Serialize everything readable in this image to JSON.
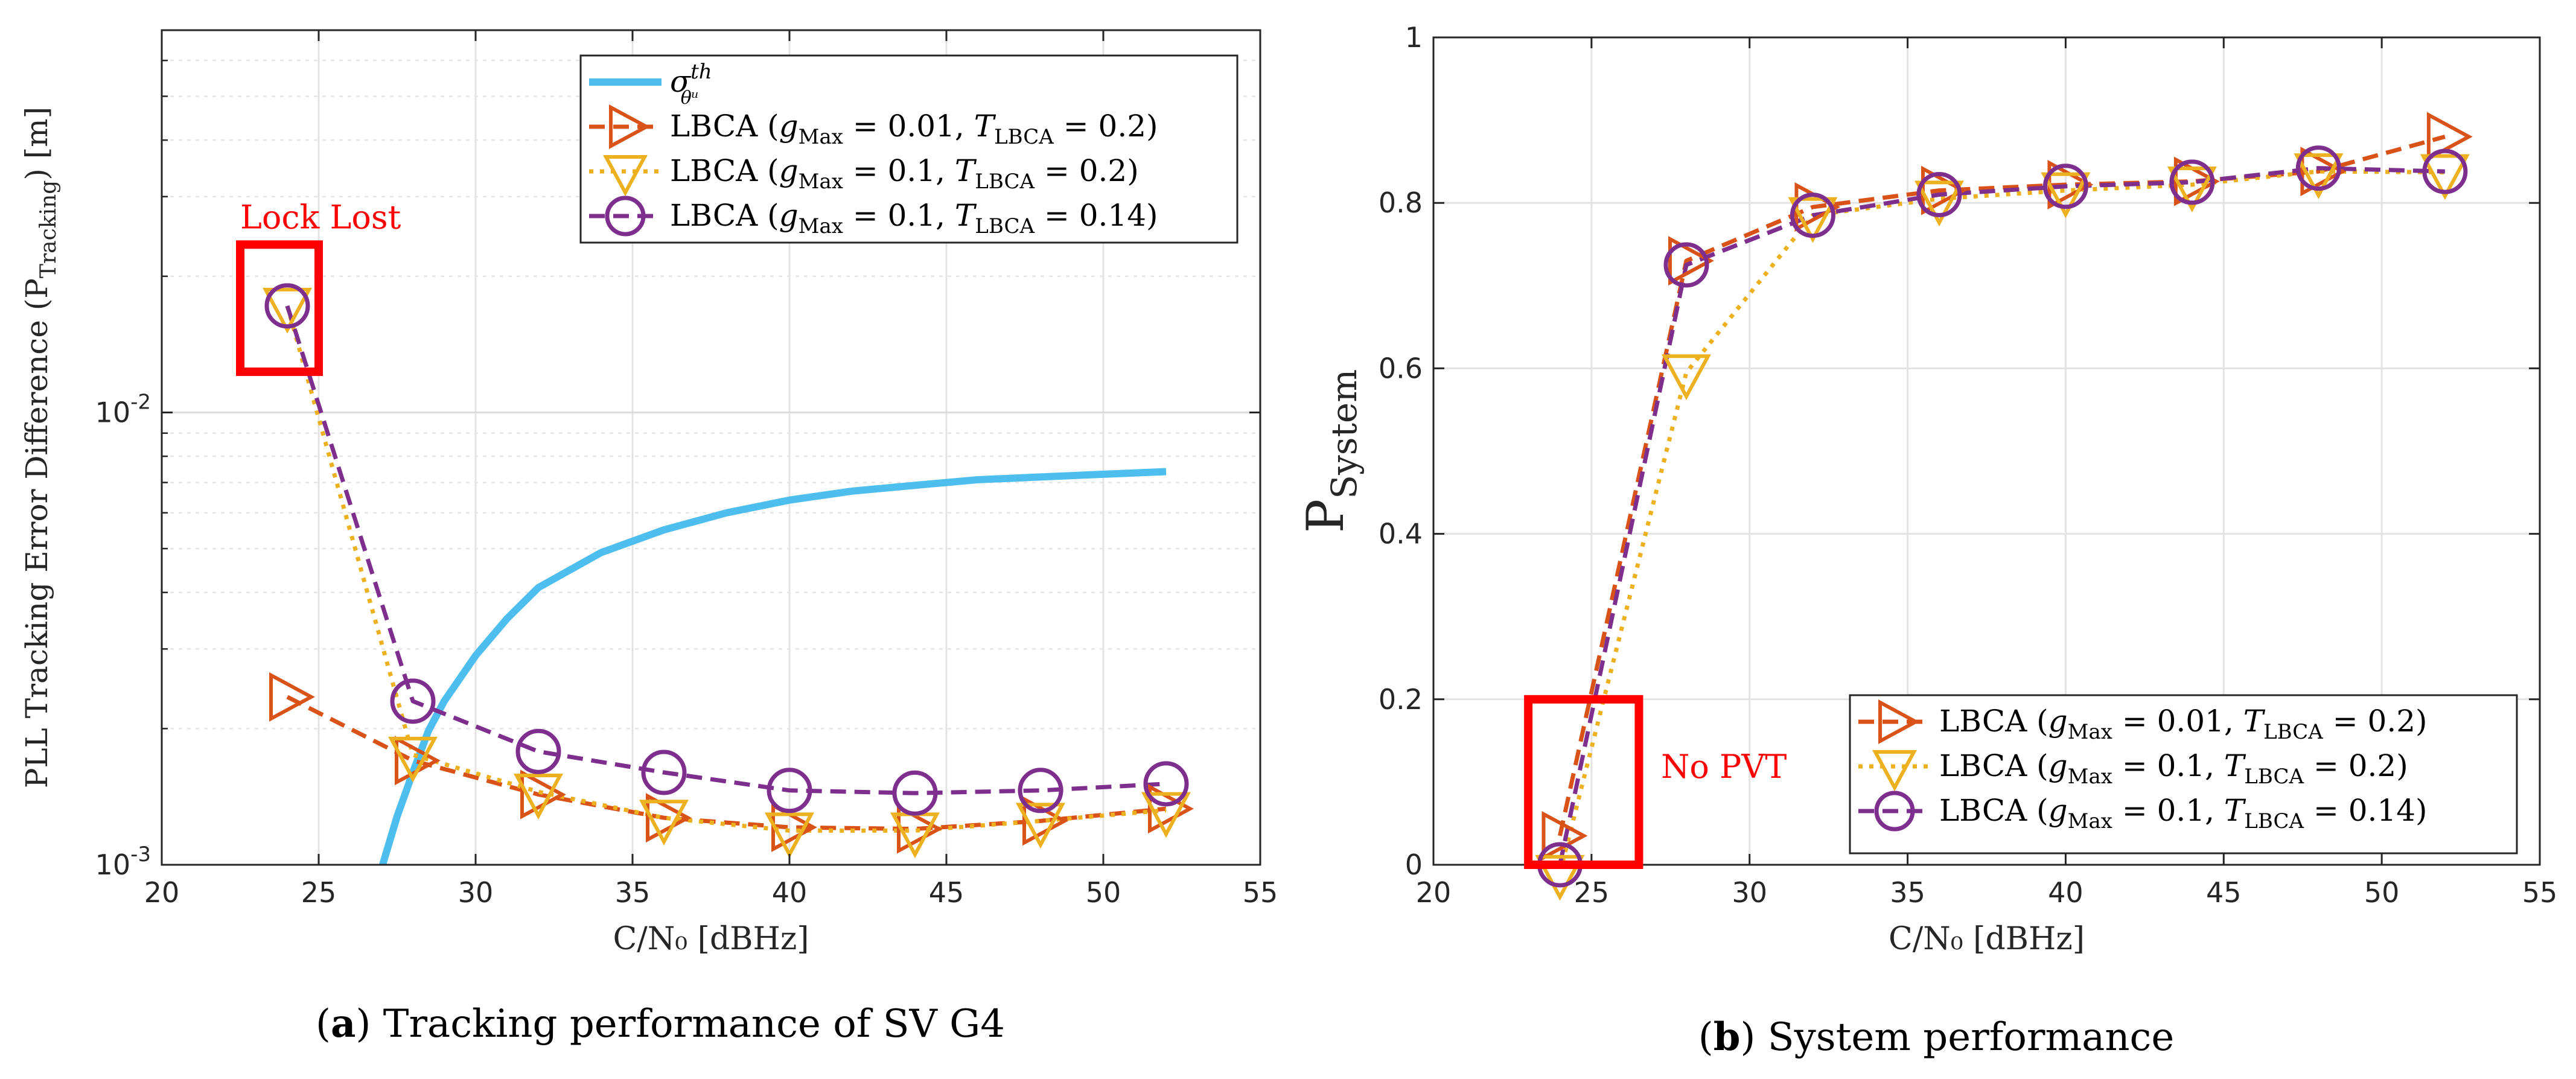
{
  "chart_data": [
    {
      "type": "line",
      "panel": "a",
      "caption_letter": "a",
      "caption_text": "Tracking performance of SV G4",
      "xlabel": "C/N₀ [dBHz]",
      "ylabel": "PLL Tracking Error Difference (P_Tracking) [m]",
      "ylabel_parts": {
        "prefix": "PLL Tracking Error Difference (P",
        "sub": "Tracking",
        "suffix": ") [m]"
      },
      "xlim": [
        20,
        55
      ],
      "ylim": [
        0.001,
        0.07
      ],
      "yscale": "log",
      "grid": true,
      "xticks": [
        20,
        25,
        30,
        35,
        40,
        45,
        50,
        55
      ],
      "yticks": [
        {
          "value": 0.001,
          "label": "10",
          "exp": "-3"
        },
        {
          "value": 0.01,
          "label": "10",
          "exp": "-2"
        }
      ],
      "legend_position": "top-right",
      "annotations": [
        {
          "text": "Lock Lost"
        }
      ],
      "series": [
        {
          "name": "σ_θᵘ^th",
          "legend_label": "σ",
          "legend_sup": "th",
          "legend_sub": "θᵘ",
          "color": "#4DBEEE",
          "style": "solid",
          "marker": "none",
          "x": [
            27,
            27.5,
            28,
            28.5,
            29,
            30,
            31,
            32,
            34,
            36,
            38,
            40,
            42,
            44,
            46,
            48,
            50,
            52
          ],
          "y": [
            0.00098,
            0.00128,
            0.0016,
            0.00198,
            0.0023,
            0.0029,
            0.0035,
            0.0041,
            0.0049,
            0.0055,
            0.006,
            0.0064,
            0.0067,
            0.0069,
            0.0071,
            0.0072,
            0.0073,
            0.0074
          ]
        },
        {
          "name": "LBCA (g_Max = 0.01, T_LBCA = 0.2)",
          "legend_g": "0.01",
          "legend_t": "0.2",
          "color": "#D95319",
          "style": "dashed",
          "marker": "triangle-right",
          "x": [
            24,
            28,
            32,
            36,
            40,
            44,
            48,
            52
          ],
          "y": [
            0.00235,
            0.0017,
            0.00143,
            0.00127,
            0.00121,
            0.0012,
            0.00125,
            0.00133
          ]
        },
        {
          "name": "LBCA (g_Max = 0.1, T_LBCA = 0.2)",
          "legend_g": "0.1",
          "legend_t": "0.2",
          "color": "#EDB120",
          "style": "dotted",
          "marker": "triangle-down",
          "x": [
            24,
            28,
            32,
            36,
            40,
            44,
            48,
            52
          ],
          "y": [
            0.0172,
            0.00175,
            0.00145,
            0.00127,
            0.00119,
            0.00119,
            0.00125,
            0.00132
          ]
        },
        {
          "name": "LBCA (g_Max = 0.1, T_LBCA = 0.14)",
          "legend_g": "0.1",
          "legend_t": "0.14",
          "color": "#7E2F8E",
          "style": "dashed",
          "marker": "circle",
          "x": [
            24,
            28,
            32,
            36,
            40,
            44,
            48,
            52
          ],
          "y": [
            0.0172,
            0.0023,
            0.00178,
            0.0016,
            0.00146,
            0.00144,
            0.00146,
            0.00151
          ]
        }
      ]
    },
    {
      "type": "line",
      "panel": "b",
      "caption_letter": "b",
      "caption_text": "System performance",
      "xlabel": "C/N₀ [dBHz]",
      "ylabel": "P_System",
      "ylabel_parts": {
        "prefix": "P",
        "sub": "System",
        "suffix": ""
      },
      "xlim": [
        20,
        55
      ],
      "ylim": [
        0,
        1
      ],
      "yscale": "linear",
      "grid": true,
      "xticks": [
        20,
        25,
        30,
        35,
        40,
        45,
        50,
        55
      ],
      "yticks": [
        {
          "value": 0,
          "label": "0"
        },
        {
          "value": 0.2,
          "label": "0.2"
        },
        {
          "value": 0.4,
          "label": "0.4"
        },
        {
          "value": 0.6,
          "label": "0.6"
        },
        {
          "value": 0.8,
          "label": "0.8"
        },
        {
          "value": 1,
          "label": "1"
        }
      ],
      "legend_position": "bottom-right",
      "annotations": [
        {
          "text": "No PVT"
        }
      ],
      "series": [
        {
          "name": "LBCA (g_Max = 0.01, T_LBCA = 0.2)",
          "legend_g": "0.01",
          "legend_t": "0.2",
          "color": "#D95319",
          "style": "dashed",
          "marker": "triangle-right",
          "x": [
            24,
            28,
            32,
            36,
            40,
            44,
            48,
            52
          ],
          "y": [
            0.035,
            0.73,
            0.795,
            0.815,
            0.822,
            0.826,
            0.838,
            0.88
          ]
        },
        {
          "name": "LBCA (g_Max = 0.1, T_LBCA = 0.2)",
          "legend_g": "0.1",
          "legend_t": "0.2",
          "color": "#EDB120",
          "style": "dotted",
          "marker": "triangle-down",
          "x": [
            24,
            28,
            32,
            36,
            40,
            44,
            48,
            52
          ],
          "y": [
            -0.01,
            0.595,
            0.785,
            0.805,
            0.815,
            0.822,
            0.838,
            0.837
          ]
        },
        {
          "name": "LBCA (g_Max = 0.1, T_LBCA = 0.14)",
          "legend_g": "0.1",
          "legend_t": "0.14",
          "color": "#7E2F8E",
          "style": "dashed",
          "marker": "circle",
          "x": [
            24,
            28,
            32,
            36,
            40,
            44,
            48,
            52
          ],
          "y": [
            0.0,
            0.725,
            0.785,
            0.81,
            0.82,
            0.825,
            0.842,
            0.838
          ]
        }
      ]
    }
  ]
}
